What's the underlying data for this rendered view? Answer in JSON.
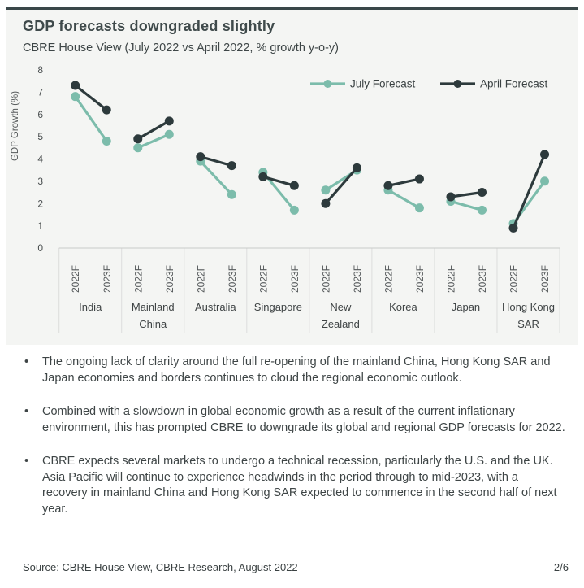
{
  "card": {
    "title": "GDP forecasts downgraded slightly",
    "subtitle": "CBRE House View (July 2022 vs April 2022, % growth y-o-y)"
  },
  "chart_data": {
    "type": "line",
    "title": "GDP forecasts downgraded slightly",
    "subtitle": "CBRE House View (July 2022 vs April 2022, % growth y-o-y)",
    "ylabel": "GDP Growth (%)",
    "xlabel": "",
    "ylim": [
      0,
      8
    ],
    "yticks": [
      0,
      1,
      2,
      3,
      4,
      5,
      6,
      7,
      8
    ],
    "grid": false,
    "legend_position": "top-right",
    "x_sublabels": [
      "2022F",
      "2023F"
    ],
    "categories": [
      "India",
      "Mainland China",
      "Australia",
      "Singapore",
      "New Zealand",
      "Korea",
      "Japan",
      "Hong Kong SAR"
    ],
    "category_label_lines": [
      [
        "India"
      ],
      [
        "Mainland",
        "China"
      ],
      [
        "Australia"
      ],
      [
        "Singapore"
      ],
      [
        "New",
        "Zealand"
      ],
      [
        "Korea"
      ],
      [
        "Japan"
      ],
      [
        "Hong Kong",
        "SAR"
      ]
    ],
    "series": [
      {
        "name": "July Forecast",
        "color": "#7cbcab",
        "values": [
          [
            6.8,
            4.8
          ],
          [
            4.5,
            5.1
          ],
          [
            3.9,
            2.4
          ],
          [
            3.4,
            1.7
          ],
          [
            2.6,
            3.5
          ],
          [
            2.6,
            1.8
          ],
          [
            2.1,
            1.7
          ],
          [
            1.1,
            3.0
          ]
        ]
      },
      {
        "name": "April Forecast",
        "color": "#2d3a3c",
        "values": [
          [
            7.3,
            6.2
          ],
          [
            4.9,
            5.7
          ],
          [
            4.1,
            3.7
          ],
          [
            3.2,
            2.8
          ],
          [
            2.0,
            3.6
          ],
          [
            2.8,
            3.1
          ],
          [
            2.3,
            2.5
          ],
          [
            0.9,
            4.2
          ]
        ]
      }
    ],
    "colors": {
      "accent_bar": "#3a4749",
      "axis_line": "#c9cac9",
      "divider_line": "#dcdddc",
      "axis_text": "#4a4f50",
      "category_text": "#3f4445",
      "legend_text": "#3b4243"
    }
  },
  "bullets": [
    "The ongoing lack of clarity around the full re-opening of the mainland China, Hong Kong SAR and Japan economies and borders continues to cloud the regional economic outlook.",
    "Combined with a slowdown in global economic growth as a result of the current inflationary environment, this has prompted CBRE to downgrade its global and regional GDP forecasts for 2022.",
    "CBRE expects several markets to undergo a technical recession, particularly the U.S. and the UK. Asia Pacific will continue to experience headwinds in the period through to mid-2023, with a recovery in mainland China and Hong Kong SAR expected to commence in the second half of next year."
  ],
  "footer": {
    "source": "Source: CBRE House View, CBRE Research, August 2022",
    "page": "2/6"
  }
}
